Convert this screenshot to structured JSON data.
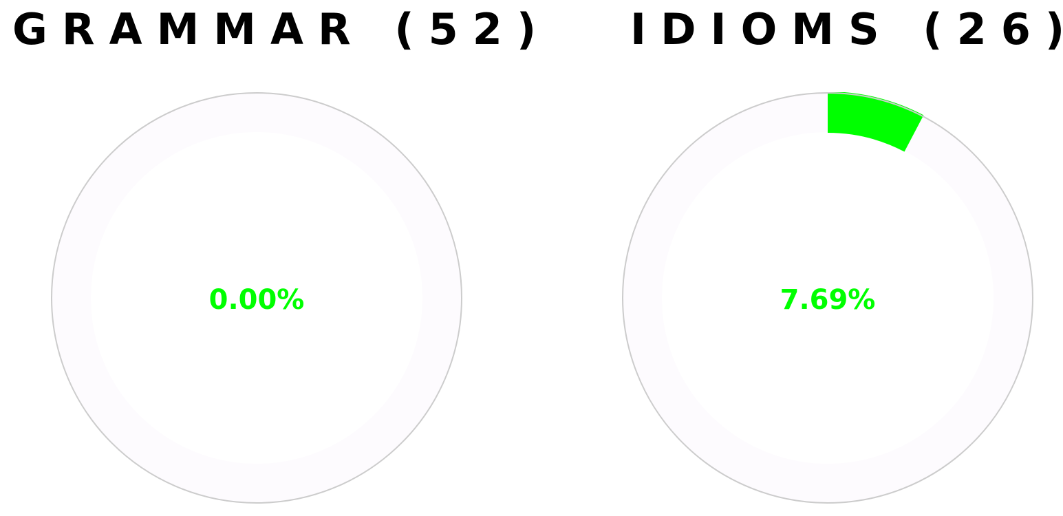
{
  "cards": [
    {
      "title": "GRAMMAR (52)",
      "progress_percent": 0.0,
      "percent_text": "0.00%"
    },
    {
      "title": "IDIOMS (26)",
      "progress_percent": 7.69,
      "percent_text": "7.69%"
    }
  ],
  "colors": {
    "progress": "#00ff00",
    "track": "#fdfbfe",
    "ring_border": "#cccccc",
    "title": "#000000"
  }
}
